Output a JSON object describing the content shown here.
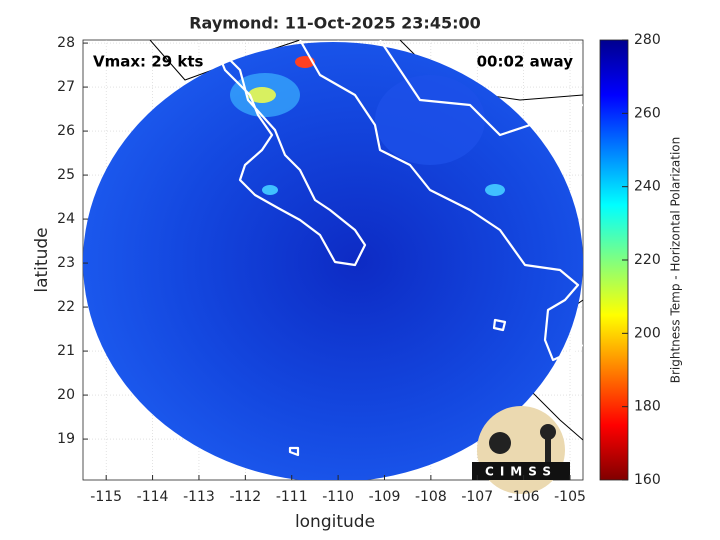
{
  "title": "Raymond: 11-Oct-2025 23:45:00",
  "annotations": {
    "vmax": "Vmax: 29 kts",
    "time_away": "00:02 away"
  },
  "axes": {
    "xlabel": "longitude",
    "ylabel": "latitude",
    "xlim": [
      -115.5,
      -104.72
    ],
    "xticks": [
      -115,
      -114,
      -113,
      -112,
      -111,
      -110,
      -109,
      -108,
      -107,
      -106,
      -105
    ],
    "ylim": [
      18.07,
      28.07
    ],
    "yticks": [
      19,
      20,
      21,
      22,
      23,
      24,
      25,
      26,
      27,
      28
    ],
    "grid": true
  },
  "colorbar": {
    "label": "Brightness Temp - Horizontal Polarization",
    "lim": [
      160,
      280
    ],
    "ticks": [
      160,
      180,
      200,
      220,
      240,
      260,
      280
    ],
    "colormap": [
      "#800000",
      "#ff0000",
      "#ff8000",
      "#ffff00",
      "#80ff80",
      "#00ffff",
      "#0080ff",
      "#0000ff",
      "#00008f"
    ]
  },
  "logo": "CIMSS"
}
